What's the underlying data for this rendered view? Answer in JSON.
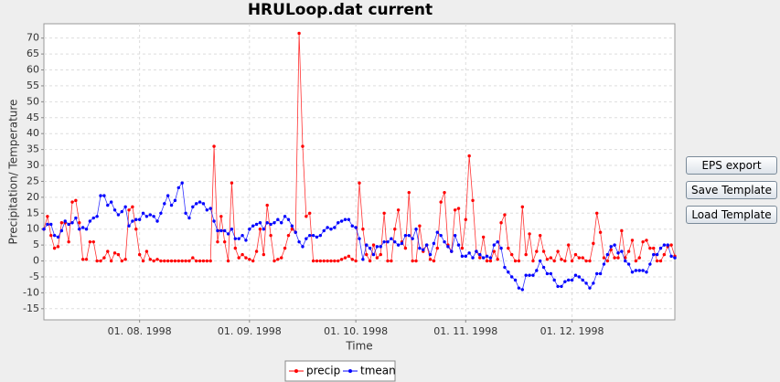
{
  "chart_data": {
    "type": "line",
    "title": "HRULoop.dat current",
    "xlabel": "Time",
    "ylabel": "Precipitation/ Temperature",
    "x": [
      "1998-07-05",
      "1998-07-06",
      "1998-07-07",
      "1998-07-08",
      "1998-07-09",
      "1998-07-10",
      "1998-07-11",
      "1998-07-12",
      "1998-07-13",
      "1998-07-14",
      "1998-07-15",
      "1998-07-16",
      "1998-07-17",
      "1998-07-18",
      "1998-07-19",
      "1998-07-20",
      "1998-07-21",
      "1998-07-22",
      "1998-07-23",
      "1998-07-24",
      "1998-07-25",
      "1998-07-26",
      "1998-07-27",
      "1998-07-28",
      "1998-07-29",
      "1998-07-30",
      "1998-07-31",
      "1998-08-01",
      "1998-08-02",
      "1998-08-03",
      "1998-08-04",
      "1998-08-05",
      "1998-08-06",
      "1998-08-07",
      "1998-08-08",
      "1998-08-09",
      "1998-08-10",
      "1998-08-11",
      "1998-08-12",
      "1998-08-13",
      "1998-08-14",
      "1998-08-15",
      "1998-08-16",
      "1998-08-17",
      "1998-08-18",
      "1998-08-19",
      "1998-08-20",
      "1998-08-21",
      "1998-08-22",
      "1998-08-23",
      "1998-08-24",
      "1998-08-25",
      "1998-08-26",
      "1998-08-27",
      "1998-08-28",
      "1998-08-29",
      "1998-08-30",
      "1998-08-31",
      "1998-09-01",
      "1998-09-02",
      "1998-09-03",
      "1998-09-04",
      "1998-09-05",
      "1998-09-06",
      "1998-09-07",
      "1998-09-08",
      "1998-09-09",
      "1998-09-10",
      "1998-09-11",
      "1998-09-12",
      "1998-09-13",
      "1998-09-14",
      "1998-09-15",
      "1998-09-16",
      "1998-09-17",
      "1998-09-18",
      "1998-09-19",
      "1998-09-20",
      "1998-09-21",
      "1998-09-22",
      "1998-09-23",
      "1998-09-24",
      "1998-09-25",
      "1998-09-26",
      "1998-09-27",
      "1998-09-28",
      "1998-09-29",
      "1998-09-30",
      "1998-10-01",
      "1998-10-02",
      "1998-10-03",
      "1998-10-04",
      "1998-10-05",
      "1998-10-06",
      "1998-10-07",
      "1998-10-08",
      "1998-10-09",
      "1998-10-10",
      "1998-10-11",
      "1998-10-12",
      "1998-10-13",
      "1998-10-14",
      "1998-10-15",
      "1998-10-16",
      "1998-10-17",
      "1998-10-18",
      "1998-10-19",
      "1998-10-20",
      "1998-10-21",
      "1998-10-22",
      "1998-10-23",
      "1998-10-24",
      "1998-10-25",
      "1998-10-26",
      "1998-10-27",
      "1998-10-28",
      "1998-10-29",
      "1998-10-30",
      "1998-10-31",
      "1998-11-01",
      "1998-11-02",
      "1998-11-03",
      "1998-11-04",
      "1998-11-05",
      "1998-11-06",
      "1998-11-07",
      "1998-11-08",
      "1998-11-09",
      "1998-11-10",
      "1998-11-11",
      "1998-11-12",
      "1998-11-13",
      "1998-11-14",
      "1998-11-15",
      "1998-11-16",
      "1998-11-17",
      "1998-11-18",
      "1998-11-19",
      "1998-11-20",
      "1998-11-21",
      "1998-11-22",
      "1998-11-23",
      "1998-11-24",
      "1998-11-25",
      "1998-11-26",
      "1998-11-27",
      "1998-11-28",
      "1998-11-29",
      "1998-11-30",
      "1998-12-01",
      "1998-12-02",
      "1998-12-03",
      "1998-12-04",
      "1998-12-05",
      "1998-12-06",
      "1998-12-07",
      "1998-12-08",
      "1998-12-09",
      "1998-12-10",
      "1998-12-11",
      "1998-12-12",
      "1998-12-13",
      "1998-12-14",
      "1998-12-15",
      "1998-12-16",
      "1998-12-17",
      "1998-12-18",
      "1998-12-19",
      "1998-12-20",
      "1998-12-21",
      "1998-12-22",
      "1998-12-23",
      "1998-12-24",
      "1998-12-25",
      "1998-12-26",
      "1998-12-27",
      "1998-12-28",
      "1998-12-29",
      "1998-12-30"
    ],
    "series": [
      {
        "name": "precip",
        "color": "#ff0000",
        "values": [
          10,
          14,
          8,
          4,
          4.5,
          12,
          12,
          6,
          18.5,
          19,
          12,
          0.5,
          0.5,
          6,
          6,
          0,
          0,
          1,
          3,
          0,
          2.5,
          2,
          0,
          0.5,
          16,
          17,
          10,
          2,
          0,
          3,
          0.5,
          0,
          0.5,
          0,
          0,
          0,
          0,
          0,
          0,
          0,
          0,
          0,
          1,
          0,
          0,
          0,
          0,
          0,
          36,
          6,
          14,
          6,
          0,
          24.5,
          4,
          1,
          2,
          1,
          0.5,
          0,
          3,
          10,
          2,
          17.5,
          8,
          0,
          0.5,
          1,
          4,
          8,
          10,
          9,
          71.5,
          36,
          14,
          15,
          0,
          0,
          0,
          0,
          0,
          0,
          0,
          0,
          0.5,
          1,
          1.5,
          0.5,
          0,
          24.5,
          10,
          2,
          0,
          5,
          1,
          2,
          15,
          0,
          0,
          10,
          16,
          6,
          4,
          21.5,
          0,
          0,
          11,
          3,
          5,
          0.5,
          0,
          4,
          18.5,
          21.5,
          5,
          3,
          16,
          16.5,
          4,
          13,
          33,
          19,
          3,
          1,
          7.5,
          0,
          0,
          3,
          0.5,
          12,
          14.5,
          4,
          2,
          0,
          0,
          17,
          2,
          8.5,
          0,
          3,
          8,
          3,
          0.5,
          1,
          0,
          3,
          0.5,
          0,
          5,
          0,
          2,
          1,
          1,
          0,
          0,
          5.5,
          15,
          9,
          1,
          0,
          3.5,
          1,
          1,
          9.5,
          1,
          3,
          6.5,
          0,
          1,
          6,
          6.5,
          4,
          4,
          0,
          0,
          2,
          4.5,
          5,
          1.5
        ]
      },
      {
        "name": "tmean",
        "color": "#0000ff",
        "values": [
          10,
          11.5,
          11.5,
          8,
          7.5,
          9.5,
          12.5,
          11.5,
          12,
          13.5,
          10,
          10.5,
          10,
          12.5,
          13.5,
          14,
          20.5,
          20.5,
          17.5,
          18.5,
          16,
          14.5,
          15.5,
          17,
          11,
          12.5,
          13,
          13,
          15,
          14,
          14.5,
          14,
          12.5,
          15,
          18,
          20.5,
          17.5,
          19,
          23,
          24.5,
          15,
          13.5,
          17,
          18,
          18.5,
          18,
          16,
          16.5,
          12.5,
          9.5,
          9.5,
          9.5,
          8.5,
          10,
          7,
          7,
          8,
          6.5,
          10,
          11,
          11.5,
          12,
          10,
          12,
          11.5,
          12,
          13,
          12,
          14,
          13,
          11,
          9,
          6,
          4.5,
          7,
          8,
          8,
          7.5,
          8,
          9.5,
          10.5,
          10,
          10.5,
          12,
          12.5,
          13,
          13,
          11,
          10.5,
          7,
          0.5,
          5,
          4,
          2,
          4.5,
          4.5,
          6,
          6,
          7,
          6,
          5,
          5.5,
          8,
          8,
          7,
          10,
          4,
          3.5,
          5,
          2,
          5.5,
          9,
          8,
          6,
          4.5,
          3,
          8,
          5,
          1.5,
          1.5,
          2.5,
          1,
          3,
          2,
          1,
          1.5,
          1,
          5,
          6,
          4,
          -2,
          -3.5,
          -5,
          -6,
          -8.5,
          -9,
          -4.5,
          -4.5,
          -4.5,
          -3,
          0,
          -2,
          -4,
          -4,
          -6,
          -8,
          -8,
          -6.5,
          -6,
          -6,
          -4.5,
          -5,
          -6,
          -7,
          -8.5,
          -7,
          -4,
          -4,
          -1,
          2,
          4.5,
          5,
          2.5,
          3,
          0,
          -1,
          -3.5,
          -3,
          -3,
          -3,
          -3.5,
          -1,
          2,
          2,
          4,
          5,
          5,
          1.5,
          1
        ]
      }
    ],
    "xlim": [
      "1998-07-05",
      "1998-12-30"
    ],
    "xticks": [
      {
        "value": "1998-08-01",
        "label": "01. 08. 1998"
      },
      {
        "value": "1998-09-01",
        "label": "01. 09. 1998"
      },
      {
        "value": "1998-10-01",
        "label": "01. 10. 1998"
      },
      {
        "value": "1998-11-01",
        "label": "01. 11. 1998"
      },
      {
        "value": "1998-12-01",
        "label": "01. 12. 1998"
      }
    ],
    "ylim": [
      -18.5,
      74.5
    ],
    "yticks": [
      -15,
      -10,
      -5,
      0,
      5,
      10,
      15,
      20,
      25,
      30,
      35,
      40,
      45,
      50,
      55,
      60,
      65,
      70
    ],
    "grid": true,
    "legend": "bottom"
  },
  "buttons": [
    "EPS export",
    "Save Template",
    "Load Template"
  ]
}
